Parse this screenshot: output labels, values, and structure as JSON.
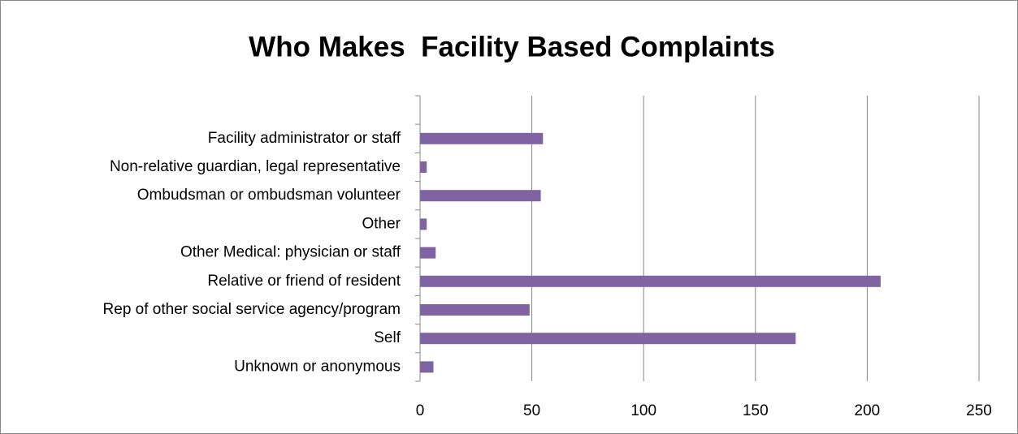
{
  "chart_data": {
    "type": "hbar",
    "title": "Who Makes  Facility Based Complaints",
    "categories": [
      null,
      "Facility administrator or staff",
      "Non-relative guardian, legal representative",
      "Ombudsman or ombudsman volunteer",
      "Other",
      "Other Medical: physician or staff",
      "Relative or friend of resident",
      "Rep of other social service agency/program",
      "Self",
      "Unknown or anonymous"
    ],
    "values": [
      null,
      55,
      3,
      54,
      3,
      7,
      206,
      49,
      168,
      6
    ],
    "color": "#8064a2",
    "xlim": [
      0,
      250
    ],
    "xticks": [
      0,
      50,
      100,
      150,
      200,
      250
    ],
    "grid": true
  }
}
